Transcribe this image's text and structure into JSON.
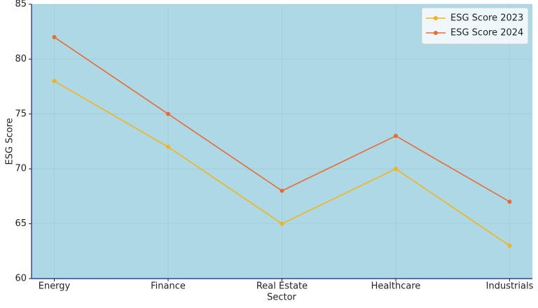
{
  "chart_data": {
    "type": "line",
    "x_label": "Sector",
    "y_label": "ESG Score",
    "categories": [
      "Energy",
      "Finance",
      "Real Estate",
      "Healthcare",
      "Industrials"
    ],
    "series": [
      {
        "name": "ESG Score 2023",
        "color": "#f5b316",
        "values": [
          78,
          72,
          65,
          70,
          63
        ]
      },
      {
        "name": "ESG Score 2024",
        "color": "#ea6b30",
        "values": [
          82,
          75,
          68,
          73,
          67
        ]
      }
    ],
    "ylim": [
      60,
      85
    ],
    "yticks": [
      60,
      65,
      70,
      75,
      80,
      85
    ],
    "grid": true,
    "legend": "upper right",
    "background": "#add8e6"
  }
}
